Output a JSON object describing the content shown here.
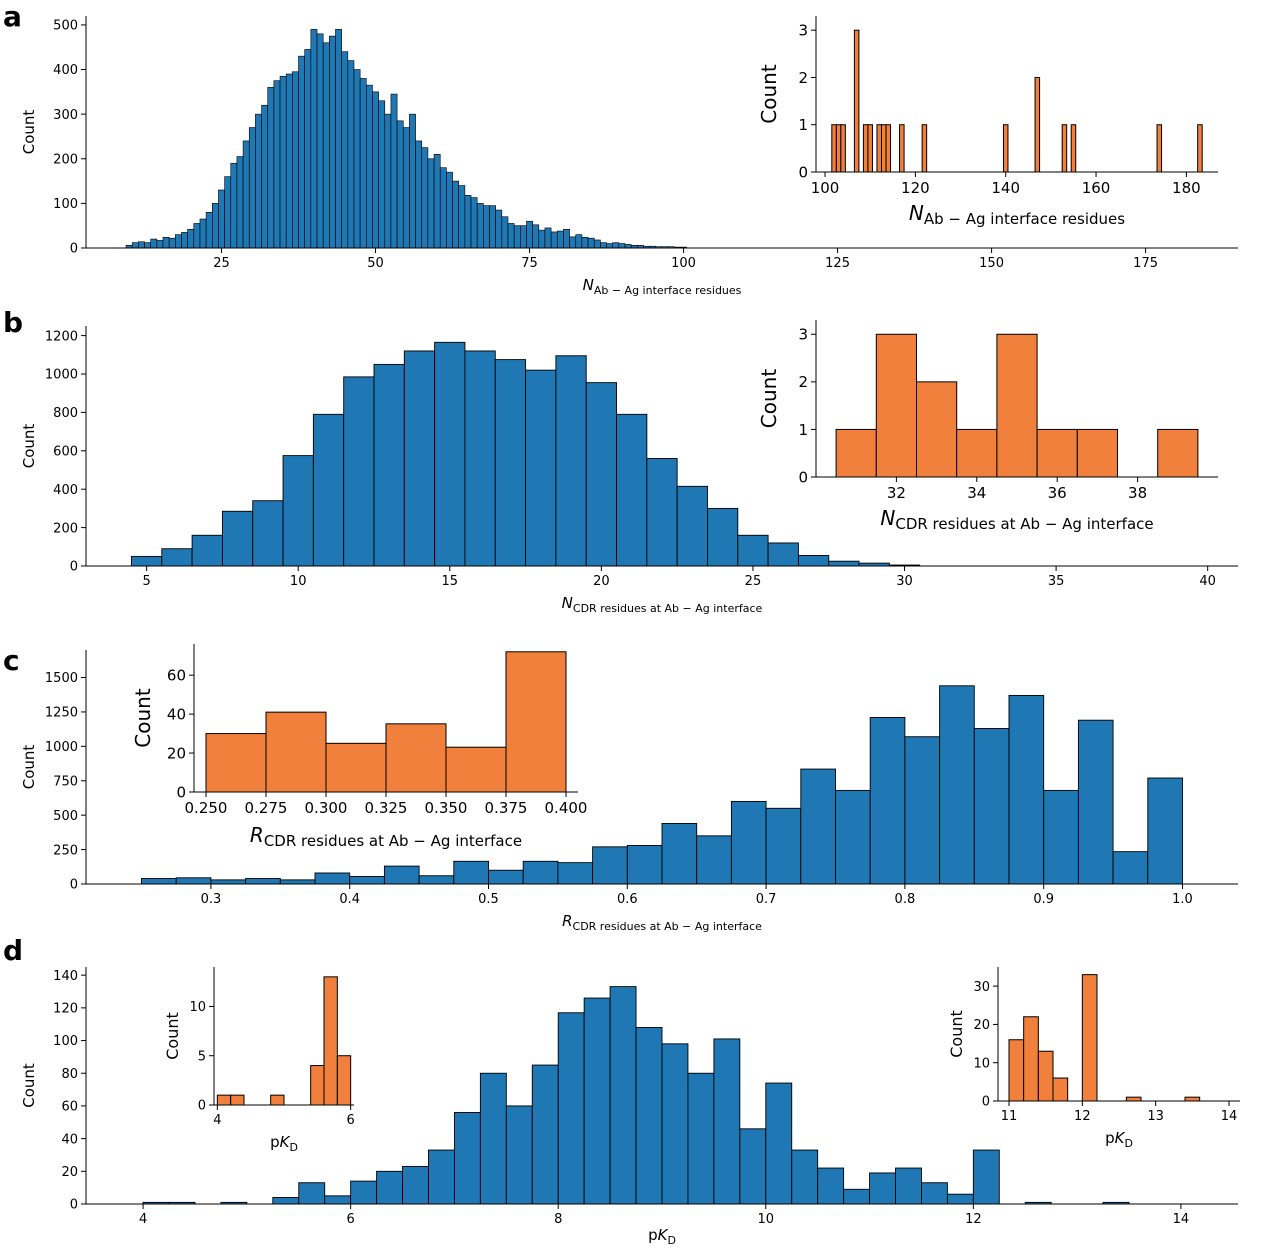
{
  "colors": {
    "main": "#1f77b4",
    "inset": "#f0803c",
    "edge": "#000000"
  },
  "chart_data": [
    {
      "panel": "a",
      "type": "bar",
      "role": "main",
      "xlabel_symbol": "N",
      "xlabel_sub": "Ab − Ag interface residues",
      "ylabel": "Count",
      "xlim": [
        3,
        190
      ],
      "ylim": [
        0,
        520
      ],
      "xticks": [
        25,
        50,
        75,
        100,
        125,
        150,
        175
      ],
      "yticks": [
        0,
        100,
        200,
        300,
        400,
        500
      ],
      "bin_width": 1,
      "x": [
        10,
        11,
        12,
        13,
        14,
        15,
        16,
        17,
        18,
        19,
        20,
        21,
        22,
        23,
        24,
        25,
        26,
        27,
        28,
        29,
        30,
        31,
        32,
        33,
        34,
        35,
        36,
        37,
        38,
        39,
        40,
        41,
        42,
        43,
        44,
        45,
        46,
        47,
        48,
        49,
        50,
        51,
        52,
        53,
        54,
        55,
        56,
        57,
        58,
        59,
        60,
        61,
        62,
        63,
        64,
        65,
        66,
        67,
        68,
        69,
        70,
        71,
        72,
        73,
        74,
        75,
        76,
        77,
        78,
        79,
        80,
        81,
        82,
        83,
        84,
        85,
        86,
        87,
        88,
        89,
        90,
        91,
        92,
        93,
        94,
        95,
        96,
        97,
        98,
        99,
        100
      ],
      "values": [
        6,
        12,
        14,
        12,
        20,
        17,
        24,
        22,
        30,
        35,
        42,
        55,
        65,
        80,
        100,
        130,
        160,
        190,
        205,
        240,
        270,
        300,
        320,
        360,
        375,
        385,
        390,
        395,
        430,
        445,
        490,
        480,
        460,
        475,
        490,
        440,
        420,
        400,
        380,
        365,
        350,
        330,
        300,
        345,
        285,
        270,
        300,
        240,
        225,
        200,
        210,
        180,
        170,
        150,
        140,
        118,
        113,
        100,
        95,
        95,
        85,
        70,
        55,
        50,
        50,
        60,
        52,
        40,
        45,
        36,
        38,
        42,
        25,
        30,
        24,
        22,
        18,
        12,
        10,
        12,
        10,
        8,
        6,
        6,
        4,
        4,
        3,
        3,
        3,
        2,
        2
      ]
    },
    {
      "panel": "a",
      "type": "bar",
      "role": "inset",
      "xlabel_symbol": "N",
      "xlabel_sub": "Ab − Ag interface residues",
      "ylabel": "Count",
      "xlim": [
        98,
        187
      ],
      "ylim": [
        0,
        3.3
      ],
      "xticks": [
        100,
        120,
        140,
        160,
        180
      ],
      "yticks": [
        0,
        1,
        2,
        3
      ],
      "bin_width": 1,
      "x": [
        102,
        103,
        104,
        107,
        109,
        110,
        112,
        113,
        114,
        117,
        122,
        140,
        147,
        153,
        155,
        174,
        183
      ],
      "values": [
        1,
        1,
        1,
        3,
        1,
        1,
        1,
        1,
        1,
        1,
        1,
        1,
        2,
        1,
        1,
        1,
        1
      ]
    },
    {
      "panel": "b",
      "type": "bar",
      "role": "main",
      "xlabel_symbol": "N",
      "xlabel_sub": "CDR residues at Ab − Ag interface",
      "ylabel": "Count",
      "xlim": [
        3,
        41
      ],
      "ylim": [
        0,
        1250
      ],
      "xticks": [
        5,
        10,
        15,
        20,
        25,
        30,
        35,
        40
      ],
      "yticks": [
        0,
        200,
        400,
        600,
        800,
        1000,
        1200
      ],
      "bin_width": 1,
      "x": [
        5,
        6,
        7,
        8,
        9,
        10,
        11,
        12,
        13,
        14,
        15,
        16,
        17,
        18,
        19,
        20,
        21,
        22,
        23,
        24,
        25,
        26,
        27,
        28,
        29,
        30
      ],
      "values": [
        50,
        90,
        160,
        285,
        340,
        575,
        790,
        985,
        1050,
        1120,
        1165,
        1120,
        1075,
        1020,
        1095,
        955,
        790,
        560,
        415,
        300,
        160,
        120,
        55,
        25,
        15,
        5
      ]
    },
    {
      "panel": "b",
      "type": "bar",
      "role": "inset",
      "xlabel_symbol": "N",
      "xlabel_sub": "CDR residues at Ab − Ag interface",
      "ylabel": "Count",
      "xlim": [
        30,
        40
      ],
      "ylim": [
        0,
        3.3
      ],
      "xticks": [
        32,
        34,
        36,
        38
      ],
      "yticks": [
        0,
        1,
        2,
        3
      ],
      "bin_width": 1,
      "x": [
        31,
        32,
        33,
        34,
        35,
        36,
        37,
        38,
        39
      ],
      "values": [
        1,
        3,
        2,
        1,
        3,
        1,
        1,
        0,
        1
      ]
    },
    {
      "panel": "c",
      "type": "bar",
      "role": "main",
      "xlabel_symbol": "R",
      "xlabel_sub": "CDR residues at Ab − Ag interface",
      "ylabel": "Count",
      "xlim": [
        0.21,
        1.04
      ],
      "ylim": [
        0,
        1700
      ],
      "xticks": [
        0.3,
        0.4,
        0.5,
        0.6,
        0.7,
        0.8,
        0.9,
        1.0
      ],
      "yticks": [
        0,
        250,
        500,
        750,
        1000,
        1250,
        1500
      ],
      "xtick_labels": [
        "0.3",
        "0.4",
        "0.5",
        "0.6",
        "0.7",
        "0.8",
        "0.9",
        "1.0"
      ],
      "bin_width": 0.025,
      "x": [
        0.2625,
        0.2875,
        0.3125,
        0.3375,
        0.3625,
        0.3875,
        0.4125,
        0.4375,
        0.4625,
        0.4875,
        0.5125,
        0.5375,
        0.5625,
        0.5875,
        0.6125,
        0.6375,
        0.6625,
        0.6875,
        0.7125,
        0.7375,
        0.7625,
        0.7875,
        0.8125,
        0.8375,
        0.8625,
        0.8875,
        0.9125,
        0.9375,
        0.9625,
        0.9875
      ],
      "values": [
        40,
        45,
        30,
        40,
        30,
        80,
        55,
        130,
        60,
        165,
        100,
        165,
        155,
        270,
        280,
        440,
        350,
        600,
        550,
        835,
        680,
        1210,
        1070,
        1440,
        1130,
        1370,
        680,
        1190,
        235,
        770
      ]
    },
    {
      "panel": "c",
      "type": "bar",
      "role": "inset",
      "xlabel_symbol": "R",
      "xlabel_sub": "CDR residues at Ab − Ag interface",
      "ylabel": "Count",
      "xlim": [
        0.245,
        0.405
      ],
      "ylim": [
        0,
        76
      ],
      "xticks": [
        0.25,
        0.275,
        0.3,
        0.325,
        0.35,
        0.375,
        0.4
      ],
      "yticks": [
        0,
        20,
        40,
        60
      ],
      "xtick_labels": [
        "0.250",
        "0.275",
        "0.300",
        "0.325",
        "0.350",
        "0.375",
        "0.400"
      ],
      "bin_width": 0.025,
      "x": [
        0.2625,
        0.2875,
        0.3125,
        0.3375,
        0.3625,
        0.3875
      ],
      "values": [
        30,
        41,
        25,
        35,
        23,
        72
      ]
    },
    {
      "panel": "d",
      "type": "bar",
      "role": "main",
      "xlabel_symbol": "p",
      "xlabel_italic": "K",
      "xlabel_sub": "D",
      "ylabel": "Count",
      "xlim": [
        3.45,
        14.55
      ],
      "ylim": [
        0,
        145
      ],
      "xticks": [
        4,
        6,
        8,
        10,
        12,
        14
      ],
      "yticks": [
        0,
        20,
        40,
        60,
        80,
        100,
        120,
        140
      ],
      "bin_width": 0.25,
      "x": [
        4.125,
        4.375,
        4.875,
        5.375,
        5.625,
        5.875,
        6.125,
        6.375,
        6.625,
        6.875,
        7.125,
        7.375,
        7.625,
        7.875,
        8.125,
        8.375,
        8.625,
        8.875,
        9.125,
        9.375,
        9.625,
        9.875,
        10.125,
        10.375,
        10.625,
        10.875,
        11.125,
        11.375,
        11.625,
        11.875,
        12.125,
        12.625,
        13.375
      ],
      "values": [
        1,
        1,
        1,
        4,
        13,
        5,
        14,
        20,
        23,
        33,
        56,
        80,
        60,
        85,
        117,
        126,
        133,
        108,
        98,
        80,
        101,
        46,
        74,
        33,
        22,
        9,
        19,
        22,
        13,
        6,
        33,
        1,
        1
      ]
    },
    {
      "panel": "d",
      "type": "bar",
      "role": "inset-left",
      "xlabel_symbol": "p",
      "xlabel_italic": "K",
      "xlabel_sub": "D",
      "ylabel": "Count",
      "xlim": [
        3.95,
        6.05
      ],
      "ylim": [
        0,
        14
      ],
      "xticks": [
        4,
        6
      ],
      "yticks": [
        0,
        5,
        10
      ],
      "bin_width": 0.2,
      "x": [
        4.1,
        4.3,
        4.9,
        5.5,
        5.7,
        5.9
      ],
      "values": [
        1,
        1,
        1,
        4,
        13,
        5
      ]
    },
    {
      "panel": "d",
      "type": "bar",
      "role": "inset-right",
      "xlabel_symbol": "p",
      "xlabel_italic": "K",
      "xlabel_sub": "D",
      "ylabel": "Count",
      "xlim": [
        10.85,
        14.15
      ],
      "ylim": [
        0,
        35
      ],
      "xticks": [
        11,
        12,
        13,
        14
      ],
      "yticks": [
        0,
        10,
        20,
        30
      ],
      "bin_width": 0.2,
      "x": [
        11.1,
        11.3,
        11.5,
        11.7,
        11.9,
        12.1,
        12.7,
        13.5
      ],
      "values": [
        16,
        22,
        13,
        6,
        0,
        33,
        1,
        1
      ]
    }
  ]
}
